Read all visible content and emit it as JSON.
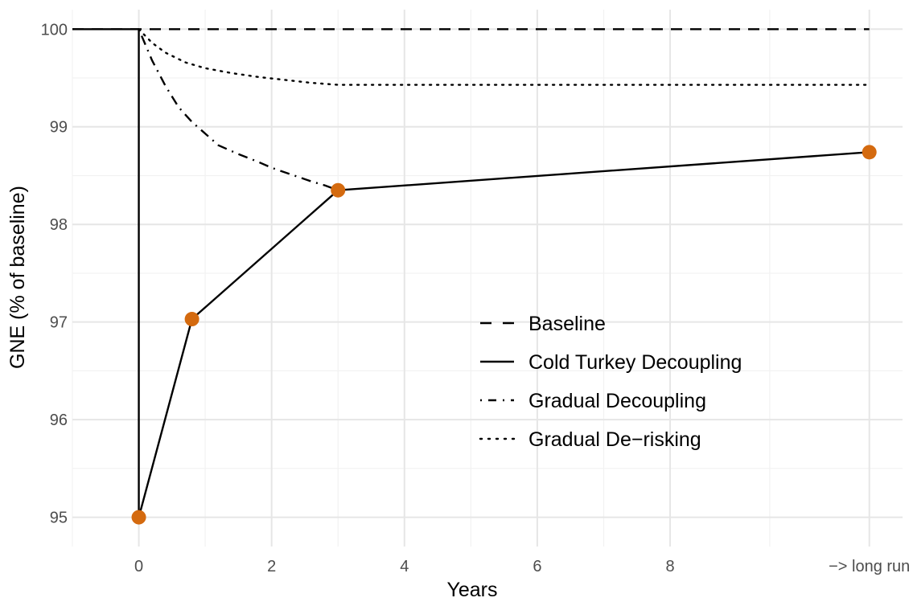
{
  "chart_data": {
    "type": "line",
    "title": "",
    "xlabel": "Years",
    "ylabel": "GNE (% of baseline)",
    "xlim": [
      -1,
      11.5
    ],
    "ylim": [
      94.7,
      100.2
    ],
    "x_ticks": [
      {
        "value": 0,
        "label": "0"
      },
      {
        "value": 2,
        "label": "2"
      },
      {
        "value": 4,
        "label": "4"
      },
      {
        "value": 6,
        "label": "6"
      },
      {
        "value": 8,
        "label": "8"
      },
      {
        "value": 11,
        "label": "−> long run"
      }
    ],
    "y_ticks": [
      {
        "value": 95,
        "label": "95"
      },
      {
        "value": 96,
        "label": "96"
      },
      {
        "value": 97,
        "label": "97"
      },
      {
        "value": 98,
        "label": "98"
      },
      {
        "value": 99,
        "label": "99"
      },
      {
        "value": 100,
        "label": "100"
      }
    ],
    "grid": true,
    "legend_position": "center-right",
    "series": [
      {
        "name": "Baseline",
        "style": "dashed",
        "color": "#000000",
        "x": [
          -1,
          0,
          11
        ],
        "y": [
          100,
          100,
          100
        ]
      },
      {
        "name": "Cold Turkey Decoupling",
        "style": "solid",
        "color": "#000000",
        "x": [
          -1,
          0,
          0,
          0.8,
          3,
          11
        ],
        "y": [
          100,
          100,
          95.0,
          97.03,
          98.35,
          98.74
        ],
        "markers": {
          "x": [
            0,
            0.8,
            3,
            11
          ],
          "y": [
            95.0,
            97.03,
            98.35,
            98.74
          ],
          "color": "#d46a0f"
        }
      },
      {
        "name": "Gradual Decoupling",
        "style": "dotdash",
        "color": "#000000",
        "x": [
          0,
          0.2,
          0.4,
          0.6,
          0.8,
          1.0,
          1.2,
          1.5,
          1.8,
          2.0,
          2.3,
          2.6,
          2.8,
          3.0
        ],
        "y": [
          100,
          99.68,
          99.42,
          99.2,
          99.05,
          98.93,
          98.81,
          98.72,
          98.64,
          98.58,
          98.51,
          98.44,
          98.4,
          98.35
        ]
      },
      {
        "name": "Gradual De−risking",
        "style": "dotted",
        "color": "#000000",
        "x": [
          0,
          0.2,
          0.4,
          0.7,
          1.0,
          1.4,
          1.8,
          2.2,
          2.6,
          3.0,
          11
        ],
        "y": [
          100,
          99.86,
          99.76,
          99.66,
          99.6,
          99.55,
          99.51,
          99.48,
          99.45,
          99.43,
          99.43
        ]
      }
    ]
  }
}
